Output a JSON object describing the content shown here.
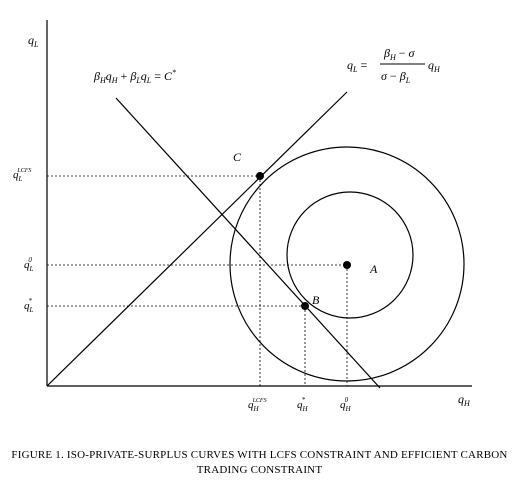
{
  "axes": {
    "y_label": "q_L",
    "x_label": "q_H"
  },
  "equations": {
    "line_equation": "β_H q_H + β_L q_L = C*",
    "ray_equation": "q_L = (β_H − σ)/(σ − β_L) q_H"
  },
  "points": [
    {
      "label": "A"
    },
    {
      "label": "B"
    },
    {
      "label": "C"
    }
  ],
  "ticks": {
    "y": [
      "q_L^LCFS",
      "q_L^0",
      "q_L^*"
    ],
    "x": [
      "q_H^LCFS",
      "q_H^*",
      "q_H^0"
    ]
  },
  "caption": {
    "line1": "FIGURE 1. ISO-PRIVATE-SURPLUS CURVES WITH LCFS CONSTRAINT AND EFFICIENT CARBON",
    "line2": "TRADING CONSTRAINT"
  }
}
